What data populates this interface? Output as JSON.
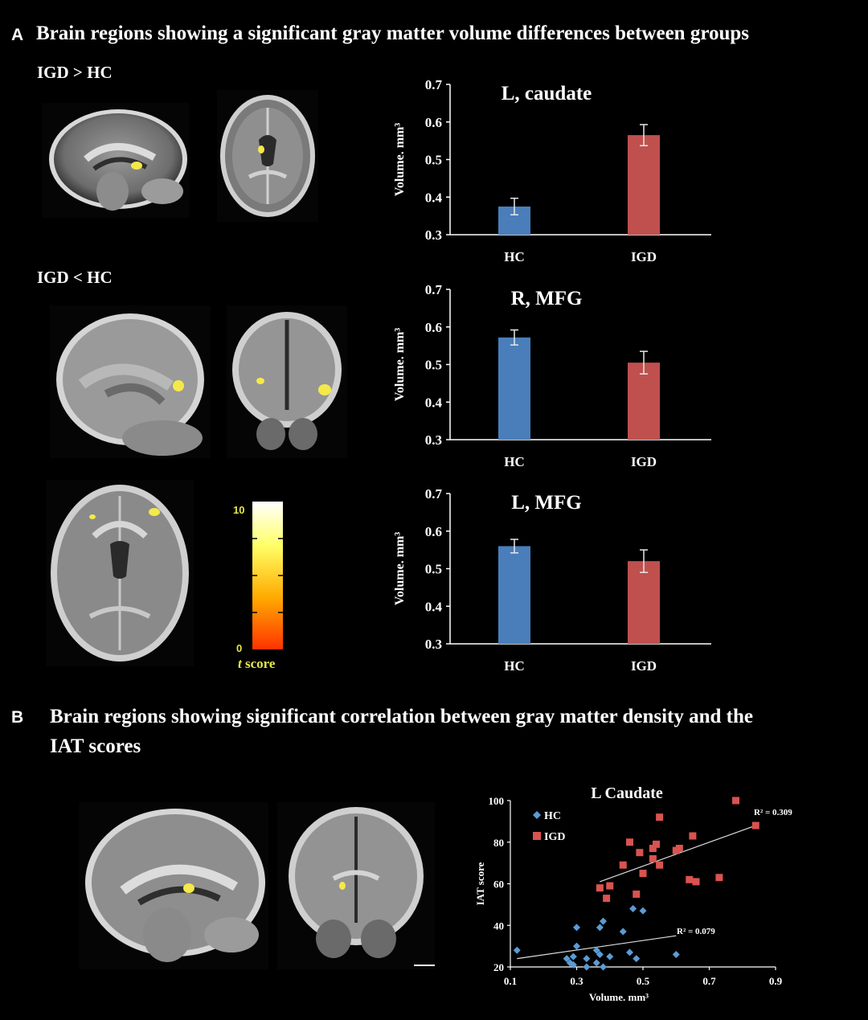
{
  "panel_a": {
    "letter": "A",
    "title": "Brain regions showing a significant gray matter volume differences between groups",
    "label_gt": "IGD > HC",
    "label_lt": "IGD < HC",
    "colorbar": {
      "max_label": "10",
      "min_label": "0",
      "label_italic": "t",
      "label_rest": " score"
    }
  },
  "panel_b": {
    "letter": "B",
    "title_line1": "Brain regions showing significant correlation between gray matter density and the",
    "title_line2": "IAT scores"
  },
  "colors": {
    "hc": "#4a7ebb",
    "igd": "#c0504d",
    "hc_scatter": "#5b9bd5",
    "igd_scatter": "#d9534f",
    "cbar_text": "#e6e64a"
  },
  "chart_data": [
    {
      "type": "bar",
      "title": "L, caudate",
      "categories": [
        "HC",
        "IGD"
      ],
      "values": [
        0.375,
        0.565
      ],
      "errors": [
        0.022,
        0.028
      ],
      "ylabel": "Volume. mm³",
      "ylim": [
        0.3,
        0.7
      ],
      "yticks": [
        "0.3",
        "0.4",
        "0.5",
        "0.6",
        "0.7"
      ],
      "grid": false
    },
    {
      "type": "bar",
      "title": "R, MFG",
      "categories": [
        "HC",
        "IGD"
      ],
      "values": [
        0.572,
        0.505
      ],
      "errors": [
        0.02,
        0.03
      ],
      "ylabel": "Volume. mm³",
      "ylim": [
        0.3,
        0.7
      ],
      "yticks": [
        "0.3",
        "0.4",
        "0.5",
        "0.6",
        "0.7"
      ],
      "grid": false
    },
    {
      "type": "bar",
      "title": "L, MFG",
      "categories": [
        "HC",
        "IGD"
      ],
      "values": [
        0.56,
        0.52
      ],
      "errors": [
        0.018,
        0.03
      ],
      "ylabel": "Volume. mm³",
      "ylim": [
        0.3,
        0.7
      ],
      "yticks": [
        "0.3",
        "0.4",
        "0.5",
        "0.6",
        "0.7"
      ],
      "grid": false
    },
    {
      "type": "scatter",
      "title": "L Caudate",
      "xlabel": "Volume. mm³",
      "ylabel": "IAT score",
      "xlim": [
        0.1,
        0.9
      ],
      "ylim": [
        20,
        100
      ],
      "xticks": [
        "0.1",
        "0.3",
        "0.5",
        "0.7",
        "0.9"
      ],
      "yticks": [
        "20",
        "40",
        "60",
        "80",
        "100"
      ],
      "legend_position": "top-left",
      "series": [
        {
          "name": "HC",
          "marker": "diamond",
          "points": [
            [
              0.12,
              28
            ],
            [
              0.27,
              24
            ],
            [
              0.28,
              22
            ],
            [
              0.29,
              25
            ],
            [
              0.29,
              21
            ],
            [
              0.3,
              39
            ],
            [
              0.3,
              30
            ],
            [
              0.33,
              24
            ],
            [
              0.33,
              20
            ],
            [
              0.36,
              28
            ],
            [
              0.36,
              22
            ],
            [
              0.37,
              39
            ],
            [
              0.37,
              26
            ],
            [
              0.38,
              42
            ],
            [
              0.38,
              20
            ],
            [
              0.4,
              25
            ],
            [
              0.44,
              37
            ],
            [
              0.46,
              27
            ],
            [
              0.47,
              48
            ],
            [
              0.48,
              24
            ],
            [
              0.5,
              47
            ],
            [
              0.6,
              26
            ]
          ],
          "r2_label": "R² = 0.079",
          "trend": [
            [
              0.12,
              24
            ],
            [
              0.6,
              35
            ]
          ]
        },
        {
          "name": "IGD",
          "marker": "square",
          "points": [
            [
              0.37,
              58
            ],
            [
              0.39,
              53
            ],
            [
              0.4,
              59
            ],
            [
              0.44,
              69
            ],
            [
              0.46,
              80
            ],
            [
              0.48,
              55
            ],
            [
              0.49,
              75
            ],
            [
              0.5,
              65
            ],
            [
              0.53,
              77
            ],
            [
              0.53,
              72
            ],
            [
              0.54,
              79
            ],
            [
              0.55,
              92
            ],
            [
              0.55,
              69
            ],
            [
              0.6,
              76
            ],
            [
              0.61,
              77
            ],
            [
              0.64,
              62
            ],
            [
              0.65,
              83
            ],
            [
              0.66,
              61
            ],
            [
              0.73,
              63
            ],
            [
              0.78,
              100
            ],
            [
              0.84,
              88
            ]
          ],
          "r2_label": "R² = 0.309",
          "trend": [
            [
              0.37,
              61
            ],
            [
              0.84,
              88
            ]
          ]
        }
      ]
    }
  ]
}
